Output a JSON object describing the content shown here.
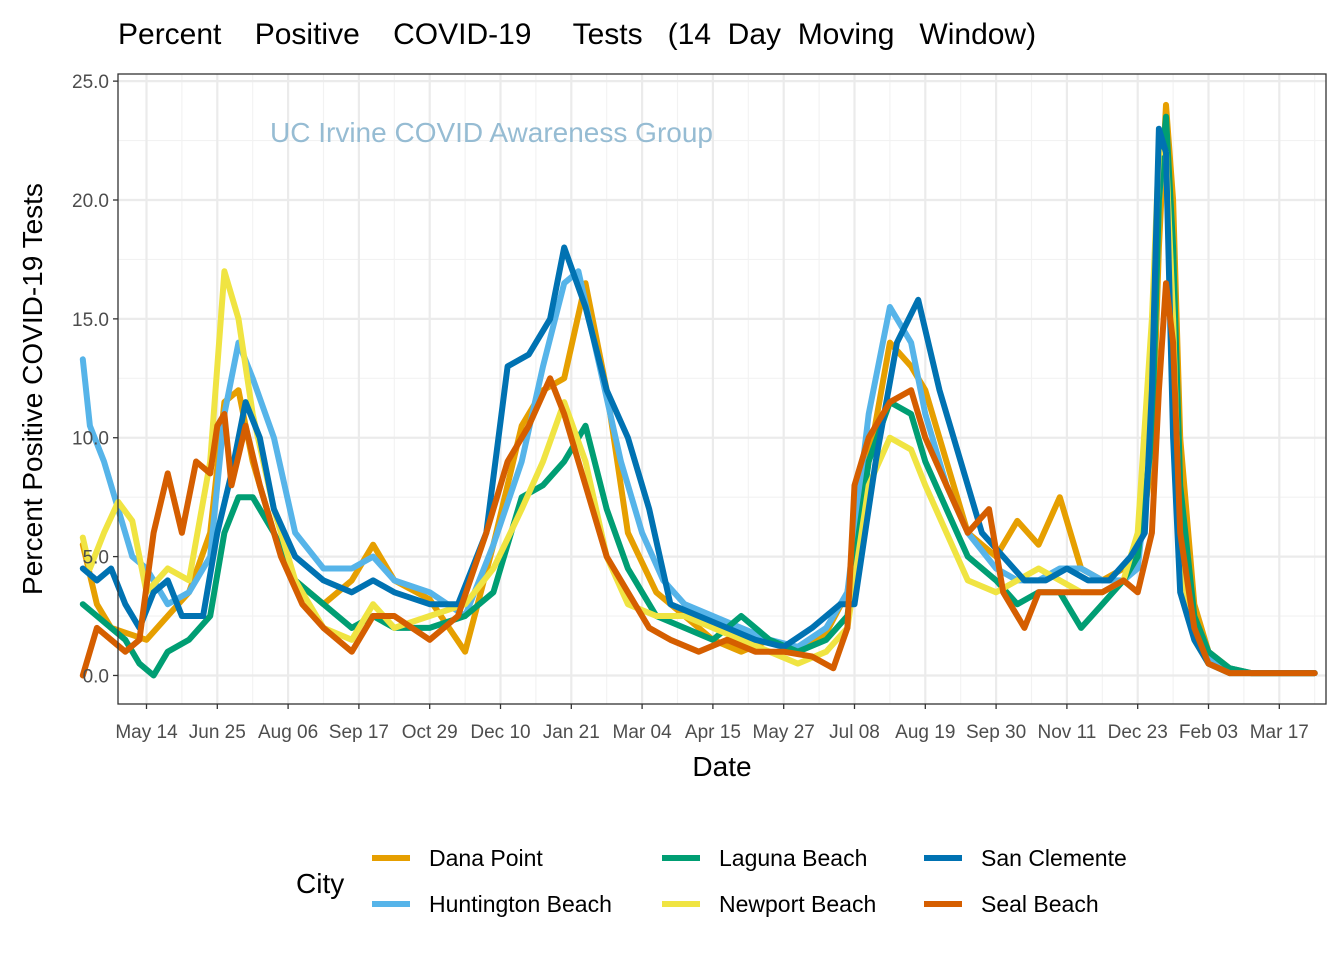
{
  "chart_data": {
    "type": "line",
    "title": "Percent    Positive    COVID-19     Tests   (14  Day  Moving   Window)",
    "watermark": "UC Irvine COVID Awareness Group",
    "xlabel": "Date",
    "ylabel": "Percent Positive COVID-19 Tests",
    "ylim": [
      -1.2,
      25.3
    ],
    "y_ticks": [
      "0.0",
      "5.0",
      "10.0",
      "15.0",
      "20.0",
      "25.0"
    ],
    "x_ticks": [
      "May 14",
      "Jun 25",
      "Aug 06",
      "Sep 17",
      "Oct 29",
      "Dec 10",
      "Jan 21",
      "Mar 04",
      "Apr 15",
      "May 27",
      "Jul 08",
      "Aug 19",
      "Sep 30",
      "Nov 11",
      "Dec 23",
      "Feb 03",
      "Mar 17"
    ],
    "grid": true,
    "legend_title": "City",
    "legend_position": "bottom",
    "x_unit": "tick index (0 = May 14, 1 = Jun 25, ... 16 = Mar 17; ticks are 42 days apart)",
    "series": [
      {
        "name": "Dana Point",
        "color": "#E69F00",
        "x": [
          -0.9,
          -0.7,
          -0.5,
          -0.3,
          0,
          0.3,
          0.6,
          0.9,
          1.1,
          1.3,
          1.5,
          1.8,
          2.1,
          2.5,
          2.9,
          3.2,
          3.5,
          4.0,
          4.5,
          4.9,
          5.3,
          5.6,
          5.9,
          6.2,
          6.5,
          6.8,
          7.2,
          7.6,
          8.0,
          8.4,
          8.8,
          9.2,
          9.6,
          9.9,
          10.2,
          10.5,
          10.8,
          11.0,
          11.3,
          11.6,
          12.0,
          12.3,
          12.6,
          12.9,
          13.2,
          13.5,
          13.8,
          14.0,
          14.2,
          14.3,
          14.4,
          14.5,
          14.6,
          14.8,
          15.0,
          15.3,
          15.6,
          16.0,
          16.5
        ],
        "y": [
          5.5,
          3.0,
          2.0,
          1.8,
          1.5,
          2.5,
          3.5,
          6.0,
          11.5,
          12.0,
          9.0,
          6.0,
          4.0,
          3.0,
          4.0,
          5.5,
          4.0,
          3.2,
          1.0,
          5.5,
          10.5,
          12.0,
          12.5,
          16.5,
          12.0,
          6.0,
          3.5,
          2.5,
          1.5,
          1.0,
          1.5,
          1.0,
          1.8,
          3.5,
          9.0,
          14.0,
          13.0,
          12.0,
          9.0,
          6.0,
          5.0,
          6.5,
          5.5,
          7.5,
          4.5,
          4.0,
          4.5,
          5.0,
          9.0,
          18.0,
          24.0,
          20.0,
          10.0,
          3.0,
          1.0,
          0.3,
          0.1,
          0.1,
          0.1
        ]
      },
      {
        "name": "Huntington Beach",
        "color": "#56B4E9",
        "x": [
          -0.9,
          -0.8,
          -0.6,
          -0.4,
          -0.2,
          0,
          0.3,
          0.6,
          0.9,
          1.1,
          1.3,
          1.5,
          1.8,
          2.1,
          2.5,
          2.9,
          3.2,
          3.5,
          4.0,
          4.5,
          4.9,
          5.3,
          5.6,
          5.9,
          6.1,
          6.4,
          6.7,
          7.0,
          7.3,
          7.6,
          8.0,
          8.4,
          8.8,
          9.2,
          9.6,
          9.9,
          10.2,
          10.5,
          10.8,
          11.0,
          11.3,
          11.6,
          12.0,
          12.3,
          12.6,
          12.9,
          13.2,
          13.5,
          13.8,
          14.0,
          14.2,
          14.3,
          14.4,
          14.5,
          14.6,
          14.8,
          15.0,
          15.3,
          15.6,
          16.0,
          16.5
        ],
        "y": [
          13.3,
          10.5,
          9.0,
          7.0,
          5.0,
          4.5,
          3.0,
          3.5,
          5.0,
          11.0,
          14.0,
          12.5,
          10.0,
          6.0,
          4.5,
          4.5,
          5.0,
          4.0,
          3.5,
          2.5,
          5.5,
          9.0,
          13.0,
          16.5,
          17.0,
          13.0,
          9.0,
          6.0,
          4.0,
          3.0,
          2.5,
          2.0,
          1.5,
          1.2,
          2.0,
          3.5,
          11.0,
          15.5,
          14.0,
          11.0,
          8.0,
          6.0,
          4.5,
          4.0,
          4.0,
          4.5,
          4.5,
          4.0,
          4.0,
          4.5,
          10.0,
          20.0,
          23.0,
          18.0,
          6.0,
          2.0,
          0.8,
          0.3,
          0.1,
          0.1,
          0.1
        ]
      },
      {
        "name": "Laguna Beach",
        "color": "#009E73",
        "x": [
          -0.9,
          -0.7,
          -0.5,
          -0.3,
          -0.1,
          0.1,
          0.3,
          0.6,
          0.9,
          1.1,
          1.3,
          1.5,
          1.8,
          2.1,
          2.5,
          2.9,
          3.2,
          3.5,
          4.0,
          4.5,
          4.9,
          5.3,
          5.6,
          5.9,
          6.2,
          6.5,
          6.8,
          7.2,
          7.6,
          8.0,
          8.4,
          8.8,
          9.2,
          9.6,
          9.9,
          10.2,
          10.5,
          10.8,
          11.0,
          11.3,
          11.6,
          12.0,
          12.3,
          12.6,
          12.9,
          13.2,
          13.5,
          13.8,
          14.0,
          14.2,
          14.3,
          14.4,
          14.5,
          14.6,
          14.8,
          15.0,
          15.3,
          15.6,
          16.0,
          16.5
        ],
        "y": [
          3.0,
          2.5,
          2.0,
          1.5,
          0.5,
          0.0,
          1.0,
          1.5,
          2.5,
          6.0,
          7.5,
          7.5,
          6.0,
          4.0,
          3.0,
          2.0,
          2.5,
          2.0,
          2.0,
          2.5,
          3.5,
          7.5,
          8.0,
          9.0,
          10.5,
          7.0,
          4.5,
          2.5,
          2.0,
          1.5,
          2.5,
          1.5,
          1.0,
          1.5,
          2.5,
          9.0,
          11.5,
          11.0,
          9.0,
          7.0,
          5.0,
          4.0,
          3.0,
          3.5,
          3.5,
          2.0,
          3.0,
          4.0,
          5.0,
          10.0,
          20.0,
          23.5,
          18.0,
          8.0,
          2.5,
          1.0,
          0.3,
          0.1,
          0.1,
          0.1
        ]
      },
      {
        "name": "Newport Beach",
        "color": "#F0E442",
        "x": [
          -0.9,
          -0.8,
          -0.6,
          -0.4,
          -0.2,
          0,
          0.3,
          0.6,
          0.9,
          1.1,
          1.3,
          1.5,
          1.8,
          2.1,
          2.5,
          2.9,
          3.2,
          3.5,
          4.0,
          4.5,
          4.9,
          5.3,
          5.6,
          5.9,
          6.2,
          6.5,
          6.8,
          7.2,
          7.6,
          8.0,
          8.4,
          8.8,
          9.2,
          9.6,
          9.9,
          10.2,
          10.5,
          10.8,
          11.0,
          11.3,
          11.6,
          12.0,
          12.3,
          12.6,
          12.9,
          13.2,
          13.5,
          13.8,
          14.0,
          14.2,
          14.3,
          14.4,
          14.5,
          14.6,
          14.8,
          15.0,
          15.3,
          15.6,
          16.0,
          16.5
        ],
        "y": [
          5.8,
          4.5,
          6.0,
          7.3,
          6.5,
          3.5,
          4.5,
          4.0,
          9.0,
          17.0,
          15.0,
          11.0,
          7.0,
          4.0,
          2.0,
          1.5,
          3.0,
          2.0,
          2.5,
          3.0,
          4.5,
          7.0,
          9.0,
          11.5,
          9.0,
          5.0,
          3.0,
          2.5,
          2.5,
          2.0,
          1.5,
          1.0,
          0.5,
          1.0,
          2.0,
          8.0,
          10.0,
          9.5,
          8.0,
          6.0,
          4.0,
          3.5,
          4.0,
          4.5,
          4.0,
          3.5,
          3.5,
          4.0,
          6.0,
          15.0,
          22.0,
          22.0,
          15.0,
          5.0,
          1.5,
          0.5,
          0.1,
          0.1,
          0.1,
          0.1
        ]
      },
      {
        "name": "San Clemente",
        "color": "#0072B2",
        "x": [
          -0.9,
          -0.7,
          -0.5,
          -0.3,
          -0.1,
          0.1,
          0.3,
          0.5,
          0.8,
          1.0,
          1.2,
          1.4,
          1.6,
          1.8,
          2.1,
          2.5,
          2.9,
          3.2,
          3.5,
          4.0,
          4.4,
          4.8,
          5.1,
          5.4,
          5.7,
          5.9,
          6.2,
          6.5,
          6.8,
          7.1,
          7.4,
          7.8,
          8.2,
          8.6,
          9.0,
          9.4,
          9.8,
          10.0,
          10.3,
          10.6,
          10.9,
          11.2,
          11.5,
          11.8,
          12.1,
          12.4,
          12.7,
          13.0,
          13.3,
          13.6,
          13.9,
          14.1,
          14.2,
          14.3,
          14.4,
          14.5,
          14.6,
          14.8,
          15.0,
          15.3,
          15.6,
          16.0,
          16.5
        ],
        "y": [
          4.5,
          4.0,
          4.5,
          3.0,
          2.0,
          3.5,
          4.0,
          2.5,
          2.5,
          6.0,
          8.5,
          11.5,
          10.0,
          7.0,
          5.0,
          4.0,
          3.5,
          4.0,
          3.5,
          3.0,
          3.0,
          6.0,
          13.0,
          13.5,
          15.0,
          18.0,
          15.5,
          12.0,
          10.0,
          7.0,
          3.0,
          2.5,
          2.0,
          1.5,
          1.2,
          2.0,
          3.0,
          3.0,
          9.0,
          14.0,
          15.8,
          12.0,
          9.0,
          6.0,
          5.0,
          4.0,
          4.0,
          4.5,
          4.0,
          4.0,
          5.0,
          6.0,
          12.0,
          23.0,
          22.0,
          10.0,
          3.5,
          1.5,
          0.5,
          0.1,
          0.1,
          0.1,
          0.1
        ]
      },
      {
        "name": "Seal Beach",
        "color": "#D55E00",
        "x": [
          -0.9,
          -0.7,
          -0.5,
          -0.3,
          -0.1,
          0.1,
          0.3,
          0.5,
          0.7,
          0.9,
          1.0,
          1.1,
          1.2,
          1.4,
          1.6,
          1.9,
          2.2,
          2.5,
          2.9,
          3.2,
          3.5,
          4.0,
          4.4,
          4.8,
          5.1,
          5.4,
          5.7,
          5.9,
          6.2,
          6.5,
          6.8,
          7.1,
          7.4,
          7.8,
          8.2,
          8.6,
          9.0,
          9.4,
          9.7,
          9.9,
          10.0,
          10.2,
          10.5,
          10.8,
          11.0,
          11.3,
          11.6,
          11.9,
          12.1,
          12.4,
          12.6,
          12.9,
          13.2,
          13.5,
          13.8,
          14.0,
          14.2,
          14.3,
          14.4,
          14.5,
          14.6,
          14.8,
          15.0,
          15.3,
          15.6,
          16.0,
          16.5
        ],
        "y": [
          0.0,
          2.0,
          1.5,
          1.0,
          1.5,
          6.0,
          8.5,
          6.0,
          9.0,
          8.5,
          10.5,
          11.0,
          8.0,
          10.5,
          8.0,
          5.0,
          3.0,
          2.0,
          1.0,
          2.5,
          2.5,
          1.5,
          2.5,
          6.0,
          9.0,
          10.5,
          12.5,
          11.0,
          8.0,
          5.0,
          3.5,
          2.0,
          1.5,
          1.0,
          1.5,
          1.0,
          1.0,
          0.8,
          0.3,
          2.0,
          8.0,
          10.0,
          11.5,
          12.0,
          10.0,
          8.0,
          6.0,
          7.0,
          3.5,
          2.0,
          3.5,
          3.5,
          3.5,
          3.5,
          4.0,
          3.5,
          6.0,
          12.0,
          16.5,
          14.0,
          6.0,
          2.0,
          0.5,
          0.1,
          0.1,
          0.1,
          0.1
        ]
      }
    ]
  }
}
